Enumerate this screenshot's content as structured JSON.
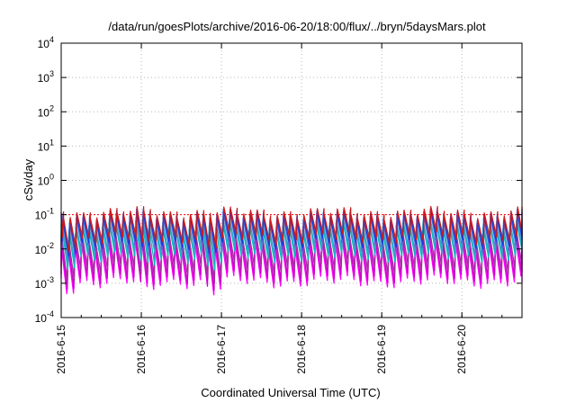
{
  "chart_data": {
    "type": "line",
    "title": "/data/run/goesPlots/archive/2016-06-20/18:00/flux/../bryn/5daysMars.plot",
    "xlabel": "Coordinated Universal Time (UTC)",
    "ylabel": "cSv/day",
    "yscale": "log",
    "ylim": [
      0.0001,
      10000
    ],
    "xlim": [
      "2016-06-15T00:00",
      "2016-06-20T18:00"
    ],
    "y_ticks": [
      {
        "value": 0.0001,
        "label": "10",
        "exp": "-4"
      },
      {
        "value": 0.001,
        "label": "10",
        "exp": "-3"
      },
      {
        "value": 0.01,
        "label": "10",
        "exp": "-2"
      },
      {
        "value": 0.1,
        "label": "10",
        "exp": "-1"
      },
      {
        "value": 1,
        "label": "10",
        "exp": "0"
      },
      {
        "value": 10,
        "label": "10",
        "exp": "1"
      },
      {
        "value": 100,
        "label": "10",
        "exp": "2"
      },
      {
        "value": 1000,
        "label": "10",
        "exp": "3"
      },
      {
        "value": 10000,
        "label": "10",
        "exp": "4"
      }
    ],
    "x_ticks": [
      {
        "value": "2016-06-15",
        "label": "2016-6-15"
      },
      {
        "value": "2016-06-16",
        "label": "2016-6-16"
      },
      {
        "value": "2016-06-17",
        "label": "2016-6-17"
      },
      {
        "value": "2016-06-18",
        "label": "2016-6-18"
      },
      {
        "value": "2016-06-19",
        "label": "2016-6-19"
      },
      {
        "value": "2016-06-20",
        "label": "2016-6-20"
      }
    ],
    "grid": true,
    "reference_line": {
      "value": 0.1,
      "color": "#ff0000",
      "style": "dotted"
    },
    "period_hours": 2,
    "dips": [
      {
        "time": "2016-06-15T02:00",
        "factor": 1.8
      },
      {
        "time": "2016-06-15T04:00",
        "factor": 1.5
      },
      {
        "time": "2016-06-16T01:00",
        "factor": 2.0
      },
      {
        "time": "2016-06-16T03:00",
        "factor": 1.6
      },
      {
        "time": "2016-06-16T21:00",
        "factor": 2.0
      },
      {
        "time": "2016-06-16T23:00",
        "factor": 1.5
      }
    ],
    "series": [
      {
        "color": "#ff00ff",
        "peak": 0.016,
        "trough": 0.0011
      },
      {
        "color": "#cc00cc",
        "peak": 0.022,
        "trough": 0.0015
      },
      {
        "color": "#a0309a",
        "peak": 0.028,
        "trough": 0.0025
      },
      {
        "color": "#00bcbc",
        "peak": 0.045,
        "trough": 0.006
      },
      {
        "color": "#3aa0c8",
        "peak": 0.055,
        "trough": 0.008
      },
      {
        "color": "#4a6ce0",
        "peak": 0.08,
        "trough": 0.012
      },
      {
        "color": "#1a3ad8",
        "peak": 0.095,
        "trough": 0.015
      },
      {
        "color": "#d01818",
        "peak": 0.11,
        "trough": 0.02
      }
    ]
  }
}
